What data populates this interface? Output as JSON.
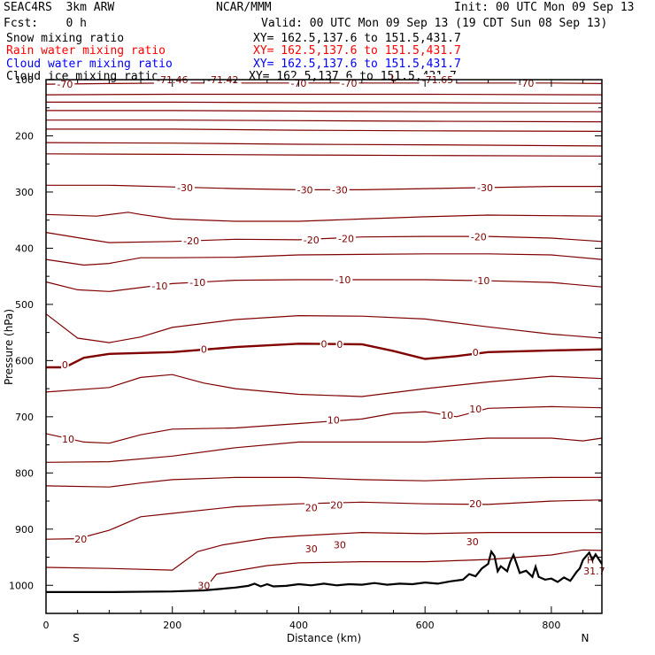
{
  "header": {
    "title": "SEAC4RS  3km ARW",
    "org": "NCAR/MMM",
    "init": "Init: 00 UTC Mon 09 Sep 13",
    "fcst": "Fcst:    0 h",
    "valid": "Valid: 00 UTC Mon 09 Sep 13 (19 CDT Sun 08 Sep 13)",
    "fields": [
      {
        "name": "Snow mixing ratio",
        "xy": "XY= 162.5,137.6 to 151.5,431.7",
        "color": "#000000"
      },
      {
        "name": "Rain water mixing ratio",
        "xy": "XY= 162.5,137.6 to 151.5,431.7",
        "color": "#ff0000"
      },
      {
        "name": "Cloud water mixing ratio",
        "xy": "XY= 162.5,137.6 to 151.5,431.7",
        "color": "#0000ff"
      },
      {
        "name": "Cloud ice mixing ratio",
        "xy": "XY= 162.5,137.6 to 151.5,431.7",
        "color": "#000000"
      }
    ]
  },
  "chart_data": {
    "type": "line",
    "xlabel": "Distance (km)",
    "ylabel": "Pressure (hPa)",
    "xlim": [
      0,
      880
    ],
    "ylim": [
      1050,
      100
    ],
    "x_ticks": [
      0,
      200,
      400,
      600,
      800
    ],
    "y_ticks": [
      200,
      300,
      400,
      500,
      600,
      700,
      800,
      900,
      1000
    ],
    "y_top_label": "100",
    "end_labels": {
      "left": "S",
      "right": "N"
    },
    "contour_color": "#800000",
    "terrain_color": "#000000",
    "contours": [
      {
        "level": -70,
        "x": [
          0,
          100,
          200,
          300,
          400,
          500,
          600,
          700,
          800,
          880
        ],
        "p": [
          108,
          107,
          106,
          106,
          106,
          106,
          106,
          106,
          106,
          107
        ]
      },
      {
        "level": -65,
        "x": [
          0,
          200,
          400,
          600,
          880
        ],
        "p": [
          127,
          126,
          126,
          126,
          127
        ]
      },
      {
        "level": -60,
        "x": [
          0,
          200,
          400,
          600,
          880
        ],
        "p": [
          140,
          140,
          141,
          141,
          142
        ]
      },
      {
        "level": -55,
        "x": [
          0,
          200,
          400,
          600,
          880
        ],
        "p": [
          155,
          155,
          156,
          157,
          157
        ]
      },
      {
        "level": -50,
        "x": [
          0,
          200,
          400,
          600,
          880
        ],
        "p": [
          172,
          172,
          173,
          174,
          175
        ]
      },
      {
        "level": -45,
        "x": [
          0,
          200,
          400,
          600,
          880
        ],
        "p": [
          188,
          188,
          190,
          191,
          192
        ]
      },
      {
        "level": -40,
        "x": [
          0,
          200,
          400,
          600,
          880
        ],
        "p": [
          212,
          213,
          215,
          216,
          218
        ]
      },
      {
        "level": -35,
        "x": [
          0,
          200,
          400,
          600,
          880
        ],
        "p": [
          232,
          233,
          234,
          235,
          236
        ]
      },
      {
        "level": -30,
        "x": [
          0,
          100,
          200,
          300,
          400,
          500,
          600,
          700,
          800,
          880
        ],
        "p": [
          288,
          288,
          291,
          294,
          296,
          296,
          294,
          292,
          290,
          290
        ]
      },
      {
        "level": -25,
        "x": [
          0,
          80,
          130,
          150,
          200,
          300,
          400,
          500,
          600,
          700,
          880
        ],
        "p": [
          340,
          343,
          336,
          340,
          348,
          352,
          352,
          348,
          344,
          341,
          343
        ]
      },
      {
        "level": -20,
        "x": [
          0,
          60,
          100,
          200,
          300,
          400,
          500,
          600,
          700,
          800,
          880
        ],
        "p": [
          372,
          383,
          390,
          388,
          384,
          385,
          380,
          379,
          379,
          382,
          388
        ]
      },
      {
        "level": -15,
        "x": [
          0,
          60,
          100,
          150,
          200,
          300,
          400,
          500,
          600,
          700,
          800,
          880
        ],
        "p": [
          420,
          430,
          427,
          417,
          417,
          416,
          412,
          411,
          410,
          410,
          412,
          420
        ]
      },
      {
        "level": -10,
        "x": [
          0,
          50,
          100,
          150,
          200,
          300,
          400,
          500,
          600,
          700,
          800,
          880
        ],
        "p": [
          460,
          474,
          477,
          470,
          463,
          457,
          456,
          456,
          456,
          458,
          461,
          469
        ]
      },
      {
        "level": -5,
        "x": [
          0,
          50,
          100,
          150,
          200,
          300,
          400,
          500,
          600,
          700,
          800,
          880
        ],
        "p": [
          517,
          560,
          568,
          558,
          541,
          527,
          520,
          521,
          526,
          540,
          553,
          560
        ]
      },
      {
        "level": 0,
        "x": [
          0,
          30,
          60,
          100,
          200,
          300,
          400,
          500,
          550,
          600,
          650,
          700,
          800,
          880
        ],
        "p": [
          612,
          612,
          595,
          588,
          585,
          576,
          570,
          571,
          583,
          597,
          592,
          585,
          582,
          580
        ]
      },
      {
        "level": 5,
        "x": [
          0,
          100,
          150,
          200,
          250,
          300,
          400,
          500,
          600,
          700,
          800,
          880
        ],
        "p": [
          656,
          648,
          630,
          625,
          640,
          650,
          660,
          664,
          650,
          638,
          628,
          632
        ]
      },
      {
        "level": 10,
        "x": [
          0,
          60,
          100,
          150,
          200,
          300,
          400,
          500,
          550,
          600,
          650,
          700,
          800,
          880
        ],
        "p": [
          730,
          745,
          747,
          732,
          722,
          720,
          712,
          704,
          694,
          691,
          700,
          685,
          682,
          684
        ]
      },
      {
        "level": 15,
        "x": [
          0,
          100,
          200,
          300,
          400,
          500,
          600,
          700,
          800,
          850,
          880
        ],
        "p": [
          781,
          780,
          770,
          755,
          745,
          745,
          745,
          738,
          738,
          743,
          738
        ]
      },
      {
        "level": 20,
        "x": [
          0,
          100,
          150,
          200,
          300,
          400,
          500,
          600,
          700,
          800,
          880
        ],
        "p": [
          823,
          825,
          818,
          812,
          808,
          808,
          812,
          814,
          810,
          808,
          808
        ]
      },
      {
        "level": 25,
        "x": [
          0,
          50,
          100,
          150,
          200,
          300,
          400,
          500,
          600,
          700,
          800,
          880
        ],
        "p": [
          918,
          917,
          902,
          878,
          872,
          860,
          855,
          852,
          855,
          856,
          850,
          848
        ]
      },
      {
        "level": 30,
        "x": [
          0,
          100,
          200,
          240,
          280,
          350,
          400,
          500,
          600,
          700,
          800,
          880
        ],
        "p": [
          968,
          970,
          973,
          940,
          928,
          916,
          912,
          906,
          908,
          906,
          906,
          906
        ]
      },
      {
        "level": 35,
        "x": [
          250,
          270,
          350,
          400,
          500,
          600,
          700,
          750,
          800,
          850,
          880
        ],
        "p": [
          1008,
          980,
          965,
          960,
          958,
          958,
          954,
          950,
          946,
          937,
          938
        ]
      }
    ],
    "labels": [
      {
        "text": "-70",
        "x": 30,
        "p": 108
      },
      {
        "text": "-71.46",
        "x": 200,
        "p": 100
      },
      {
        "text": "-71.42",
        "x": 280,
        "p": 100
      },
      {
        "text": "-70",
        "x": 400,
        "p": 106
      },
      {
        "text": "-70",
        "x": 480,
        "p": 106
      },
      {
        "text": "-71.65",
        "x": 620,
        "p": 100
      },
      {
        "text": "-70",
        "x": 760,
        "p": 106
      },
      {
        "text": "-30",
        "x": 220,
        "p": 292
      },
      {
        "text": "-30",
        "x": 410,
        "p": 296
      },
      {
        "text": "-30",
        "x": 465,
        "p": 296
      },
      {
        "text": "-30",
        "x": 695,
        "p": 292
      },
      {
        "text": "-20",
        "x": 230,
        "p": 387
      },
      {
        "text": "-20",
        "x": 420,
        "p": 385
      },
      {
        "text": "-20",
        "x": 475,
        "p": 383
      },
      {
        "text": "-20",
        "x": 685,
        "p": 380
      },
      {
        "text": "-10",
        "x": 180,
        "p": 467
      },
      {
        "text": "-10",
        "x": 240,
        "p": 461
      },
      {
        "text": "-10",
        "x": 470,
        "p": 456
      },
      {
        "text": "-10",
        "x": 690,
        "p": 458
      },
      {
        "text": "0",
        "x": 30,
        "p": 607
      },
      {
        "text": "0",
        "x": 250,
        "p": 580
      },
      {
        "text": "0",
        "x": 440,
        "p": 570
      },
      {
        "text": "0",
        "x": 465,
        "p": 571
      },
      {
        "text": "0",
        "x": 680,
        "p": 585
      },
      {
        "text": "10",
        "x": 35,
        "p": 740
      },
      {
        "text": "10",
        "x": 455,
        "p": 706
      },
      {
        "text": "10",
        "x": 635,
        "p": 697
      },
      {
        "text": "10",
        "x": 680,
        "p": 686
      },
      {
        "text": "20",
        "x": 55,
        "p": 918
      },
      {
        "text": "20",
        "x": 420,
        "p": 862
      },
      {
        "text": "20",
        "x": 460,
        "p": 857
      },
      {
        "text": "20",
        "x": 680,
        "p": 855
      },
      {
        "text": "30",
        "x": 250,
        "p": 1000
      },
      {
        "text": "30",
        "x": 420,
        "p": 935
      },
      {
        "text": "30",
        "x": 465,
        "p": 928
      },
      {
        "text": "30",
        "x": 675,
        "p": 922
      },
      {
        "text": "31.7",
        "x": 868,
        "p": 974
      }
    ],
    "extremum_marks": [
      {
        "text": "L",
        "x": 550,
        "p": 97
      },
      {
        "text": "H",
        "x": 862,
        "p": 955
      }
    ],
    "terrain": {
      "x": [
        0,
        100,
        200,
        250,
        280,
        300,
        320,
        330,
        340,
        350,
        360,
        380,
        400,
        420,
        440,
        460,
        480,
        500,
        520,
        540,
        560,
        580,
        600,
        620,
        640,
        660,
        670,
        680,
        690,
        700,
        705,
        710,
        715,
        720,
        730,
        735,
        740,
        745,
        750,
        760,
        770,
        775,
        780,
        790,
        800,
        810,
        820,
        830,
        840,
        845,
        850,
        855,
        860,
        865,
        870,
        880
      ],
      "p": [
        1012,
        1012,
        1011,
        1009,
        1006,
        1004,
        1001,
        997,
        1002,
        998,
        1002,
        1001,
        998,
        1000,
        997,
        1000,
        998,
        999,
        996,
        999,
        997,
        998,
        995,
        997,
        993,
        990,
        980,
        984,
        970,
        962,
        940,
        948,
        975,
        966,
        975,
        958,
        946,
        962,
        978,
        974,
        985,
        967,
        985,
        990,
        988,
        994,
        986,
        992,
        976,
        970,
        955,
        948,
        942,
        955,
        945,
        962
      ]
    }
  }
}
